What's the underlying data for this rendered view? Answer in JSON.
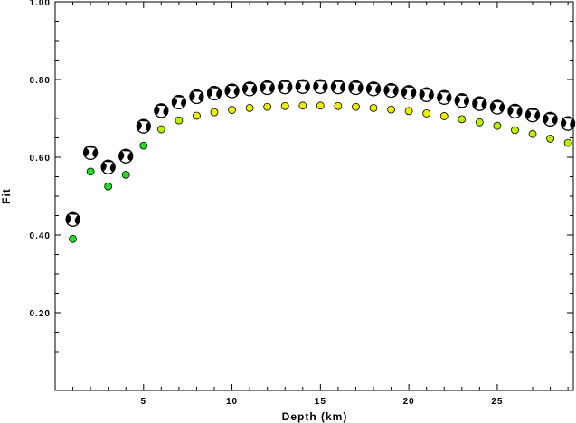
{
  "chart_data": {
    "type": "scatter",
    "title": "",
    "xlabel": "Depth (km)",
    "ylabel": "Fit",
    "xlim": [
      0,
      29.3
    ],
    "ylim": [
      0,
      1.0
    ],
    "x_ticks": [
      5,
      10,
      15,
      20,
      25
    ],
    "y_ticks": [
      0.2,
      0.4,
      0.6,
      0.8,
      1.0
    ],
    "y_tick_labels": [
      "0.20",
      "0.40",
      "0.60",
      "0.80",
      "1.00"
    ],
    "grid": false,
    "legend": "none",
    "colors": {
      "green": "#22dd22",
      "yellow_green": "#bbee00",
      "yellow": "#eeee00",
      "beachball_dark": "#000000",
      "beachball_light": "#ffffff"
    },
    "series": [
      {
        "marker": "dot",
        "x": [
          1,
          2,
          3,
          4,
          5,
          6,
          7,
          8,
          9,
          10,
          11,
          12,
          13,
          14,
          15,
          16,
          17,
          18,
          19,
          20,
          21,
          22,
          23,
          24,
          25,
          26,
          27,
          28,
          29
        ],
        "y": [
          0.39,
          0.563,
          0.525,
          0.555,
          0.63,
          0.672,
          0.695,
          0.707,
          0.716,
          0.722,
          0.727,
          0.73,
          0.732,
          0.733,
          0.733,
          0.732,
          0.73,
          0.727,
          0.723,
          0.719,
          0.713,
          0.706,
          0.698,
          0.69,
          0.681,
          0.67,
          0.66,
          0.648,
          0.637
        ]
      },
      {
        "marker": "focal-mechanism",
        "x": [
          1,
          2,
          3,
          4,
          5,
          6,
          7,
          8,
          9,
          10,
          11,
          12,
          13,
          14,
          15,
          16,
          17,
          18,
          19,
          20,
          21,
          22,
          23,
          24,
          25,
          26,
          27,
          28,
          29
        ],
        "y": [
          0.44,
          0.612,
          0.575,
          0.603,
          0.68,
          0.72,
          0.742,
          0.756,
          0.765,
          0.771,
          0.776,
          0.779,
          0.781,
          0.782,
          0.782,
          0.781,
          0.779,
          0.776,
          0.772,
          0.767,
          0.761,
          0.754,
          0.746,
          0.738,
          0.729,
          0.719,
          0.709,
          0.698,
          0.687
        ]
      }
    ]
  }
}
